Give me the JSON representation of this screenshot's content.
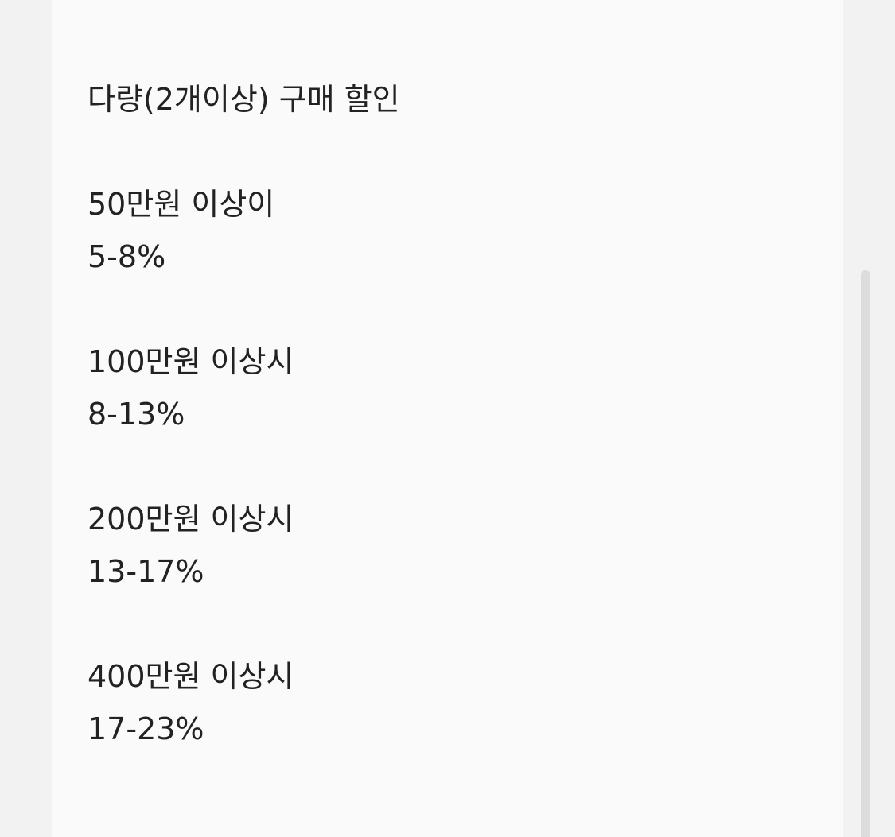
{
  "title": "다량(2개이상) 구매 할인",
  "tiers": [
    {
      "threshold": "50만원 이상이",
      "discount": "5-8%"
    },
    {
      "threshold": "100만원 이상시",
      "discount": "8-13%"
    },
    {
      "threshold": "200만원 이상시",
      "discount": "13-17%"
    },
    {
      "threshold": "400만원 이상시",
      "discount": "17-23%"
    }
  ]
}
